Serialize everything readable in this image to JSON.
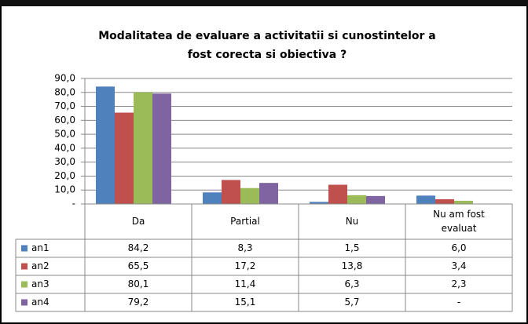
{
  "chart_data": {
    "type": "bar",
    "title": [
      "Modalitatea de evaluare a activitatii si cunostintelor a",
      "fost corecta si obiectiva ?"
    ],
    "categories": [
      "Da",
      "Partial",
      "Nu",
      [
        "Nu am fost",
        "evaluat"
      ]
    ],
    "series": [
      {
        "name": "an1",
        "color": "#4f81bd",
        "values": [
          84.2,
          8.3,
          1.5,
          6.0
        ],
        "value_labels": [
          "84,2",
          "8,3",
          "1,5",
          "6,0"
        ]
      },
      {
        "name": "an2",
        "color": "#c0504d",
        "values": [
          65.5,
          17.2,
          13.8,
          3.4
        ],
        "value_labels": [
          "65,5",
          "17,2",
          "13,8",
          "3,4"
        ]
      },
      {
        "name": "an3",
        "color": "#9bbb59",
        "values": [
          80.1,
          11.4,
          6.3,
          2.3
        ],
        "value_labels": [
          "80,1",
          "11,4",
          "6,3",
          "2,3"
        ]
      },
      {
        "name": "an4",
        "color": "#8064a2",
        "values": [
          79.2,
          15.1,
          5.7,
          null
        ],
        "value_labels": [
          "79,2",
          "15,1",
          "5,7",
          "-"
        ]
      }
    ],
    "ylim": [
      0,
      90
    ],
    "yticks": [
      {
        "value": 0,
        "label": "-"
      },
      {
        "value": 10,
        "label": "10,0"
      },
      {
        "value": 20,
        "label": "20,0"
      },
      {
        "value": 30,
        "label": "30,0"
      },
      {
        "value": 40,
        "label": "40,0"
      },
      {
        "value": 50,
        "label": "50,0"
      },
      {
        "value": 60,
        "label": "60,0"
      },
      {
        "value": 70,
        "label": "70,0"
      },
      {
        "value": 80,
        "label": "80,0"
      },
      {
        "value": 90,
        "label": "90,0"
      }
    ],
    "grid": true
  }
}
